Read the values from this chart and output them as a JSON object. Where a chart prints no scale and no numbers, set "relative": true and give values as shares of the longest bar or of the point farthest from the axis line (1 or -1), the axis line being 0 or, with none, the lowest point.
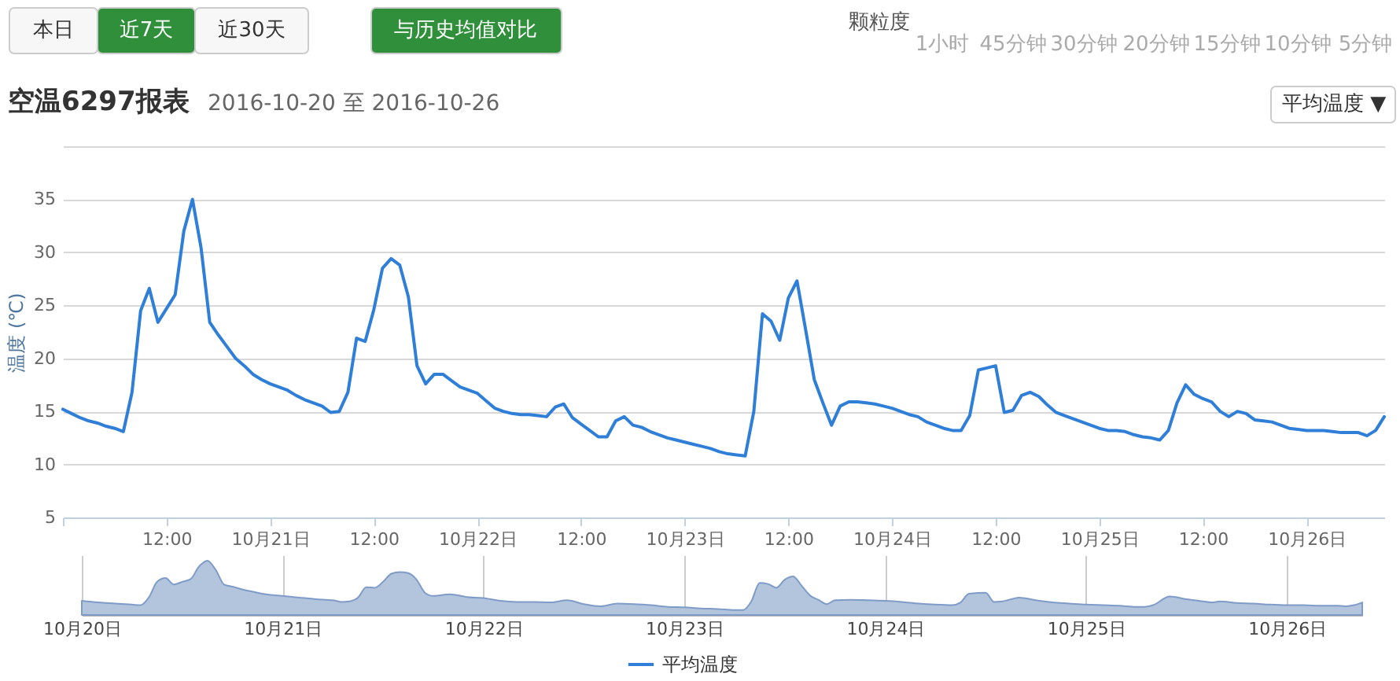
{
  "chart_data": [
    {
      "type": "line",
      "title": "空温6297报表",
      "subtitle": "2016-10-20 至 2016-10-26",
      "ylabel": "温度 (℃)",
      "annotations": [
        "本日",
        "近7天",
        "近30天",
        "与历史均值对比",
        "颗粒度",
        "1小时",
        "45分钟",
        "30分钟",
        "20分钟",
        "15分钟",
        "10分钟",
        "5分钟",
        "平均温度 ▼"
      ],
      "x": [
        "2016-10-20T00:00",
        "2016-10-20T01:00",
        "2016-10-20T02:00",
        "2016-10-20T03:00",
        "2016-10-20T04:00",
        "2016-10-20T05:00",
        "2016-10-20T06:00",
        "2016-10-20T07:00",
        "2016-10-20T08:00",
        "2016-10-20T09:00",
        "2016-10-20T10:00",
        "2016-10-20T11:00",
        "2016-10-20T12:00",
        "2016-10-20T13:00",
        "2016-10-20T14:00",
        "2016-10-20T15:00",
        "2016-10-20T16:00",
        "2016-10-20T17:00",
        "2016-10-20T18:00",
        "2016-10-20T19:00",
        "2016-10-20T20:00",
        "2016-10-20T21:00",
        "2016-10-20T22:00",
        "2016-10-20T23:00",
        "2016-10-21T00:00",
        "2016-10-21T01:00",
        "2016-10-21T02:00",
        "2016-10-21T03:00",
        "2016-10-21T04:00",
        "2016-10-21T05:00",
        "2016-10-21T06:00",
        "2016-10-21T07:00",
        "2016-10-21T08:00",
        "2016-10-21T09:00",
        "2016-10-21T10:00",
        "2016-10-21T11:00",
        "2016-10-21T12:00",
        "2016-10-21T13:00",
        "2016-10-21T14:00",
        "2016-10-21T15:00",
        "2016-10-21T16:00",
        "2016-10-21T17:00",
        "2016-10-21T18:00",
        "2016-10-21T19:00",
        "2016-10-21T20:00",
        "2016-10-21T21:00",
        "2016-10-21T22:00",
        "2016-10-21T23:00",
        "2016-10-22T00:00",
        "2016-10-22T01:00",
        "2016-10-22T02:00",
        "2016-10-22T03:00",
        "2016-10-22T04:00",
        "2016-10-22T05:00",
        "2016-10-22T06:00",
        "2016-10-22T07:00",
        "2016-10-22T08:00",
        "2016-10-22T09:00",
        "2016-10-22T10:00",
        "2016-10-22T11:00",
        "2016-10-22T12:00",
        "2016-10-22T13:00",
        "2016-10-22T14:00",
        "2016-10-22T15:00",
        "2016-10-22T16:00",
        "2016-10-22T17:00",
        "2016-10-22T18:00",
        "2016-10-22T19:00",
        "2016-10-22T20:00",
        "2016-10-22T21:00",
        "2016-10-22T22:00",
        "2016-10-22T23:00",
        "2016-10-23T00:00",
        "2016-10-23T01:00",
        "2016-10-23T02:00",
        "2016-10-23T03:00",
        "2016-10-23T04:00",
        "2016-10-23T05:00",
        "2016-10-23T06:00",
        "2016-10-23T07:00",
        "2016-10-23T08:00",
        "2016-10-23T09:00",
        "2016-10-23T10:00",
        "2016-10-23T11:00",
        "2016-10-23T12:00",
        "2016-10-23T13:00",
        "2016-10-23T14:00",
        "2016-10-23T15:00",
        "2016-10-23T16:00",
        "2016-10-23T17:00",
        "2016-10-23T18:00",
        "2016-10-23T19:00",
        "2016-10-23T20:00",
        "2016-10-23T21:00",
        "2016-10-23T22:00",
        "2016-10-23T23:00",
        "2016-10-24T00:00",
        "2016-10-24T01:00",
        "2016-10-24T02:00",
        "2016-10-24T03:00",
        "2016-10-24T04:00",
        "2016-10-24T05:00",
        "2016-10-24T06:00",
        "2016-10-24T07:00",
        "2016-10-24T08:00",
        "2016-10-24T09:00",
        "2016-10-24T10:00",
        "2016-10-24T11:00",
        "2016-10-24T12:00",
        "2016-10-24T13:00",
        "2016-10-24T14:00",
        "2016-10-24T15:00",
        "2016-10-24T16:00",
        "2016-10-24T17:00",
        "2016-10-24T18:00",
        "2016-10-24T19:00",
        "2016-10-24T20:00",
        "2016-10-24T21:00",
        "2016-10-24T22:00",
        "2016-10-24T23:00",
        "2016-10-25T00:00",
        "2016-10-25T01:00",
        "2016-10-25T02:00",
        "2016-10-25T03:00",
        "2016-10-25T04:00",
        "2016-10-25T05:00",
        "2016-10-25T06:00",
        "2016-10-25T07:00",
        "2016-10-25T08:00",
        "2016-10-25T09:00",
        "2016-10-25T10:00",
        "2016-10-25T11:00",
        "2016-10-25T12:00",
        "2016-10-25T13:00",
        "2016-10-25T14:00",
        "2016-10-25T15:00",
        "2016-10-25T16:00",
        "2016-10-25T17:00",
        "2016-10-25T18:00",
        "2016-10-25T19:00",
        "2016-10-25T20:00",
        "2016-10-25T21:00",
        "2016-10-25T22:00",
        "2016-10-25T23:00",
        "2016-10-26T00:00",
        "2016-10-26T01:00",
        "2016-10-26T02:00",
        "2016-10-26T03:00",
        "2016-10-26T04:00",
        "2016-10-26T05:00",
        "2016-10-26T06:00",
        "2016-10-26T07:00",
        "2016-10-26T08:00",
        "2016-10-26T09:00"
      ],
      "series": [
        {
          "name": "平均温度",
          "color": "#2f7ed8",
          "values": [
            15.2,
            14.8,
            14.4,
            14.1,
            13.9,
            13.6,
            13.4,
            13.1,
            16.8,
            24.5,
            26.6,
            23.4,
            24.7,
            26.0,
            32.0,
            35.0,
            30.4,
            23.4,
            22.2,
            21.1,
            20.0,
            19.3,
            18.5,
            18.0,
            17.6,
            17.3,
            17.0,
            16.5,
            16.1,
            15.8,
            15.5,
            14.9,
            15.0,
            16.8,
            21.9,
            21.6,
            24.6,
            28.5,
            29.4,
            28.8,
            25.8,
            19.3,
            17.6,
            18.5,
            18.5,
            17.9,
            17.3,
            17.0,
            16.7,
            16.0,
            15.3,
            15.0,
            14.8,
            14.7,
            14.7,
            14.6,
            14.5,
            15.4,
            15.7,
            14.4,
            13.8,
            13.2,
            12.6,
            12.6,
            14.1,
            14.5,
            13.7,
            13.5,
            13.1,
            12.8,
            12.5,
            12.3,
            12.1,
            11.9,
            11.7,
            11.5,
            11.2,
            11.0,
            10.9,
            10.8,
            15.0,
            24.2,
            23.5,
            21.7,
            25.7,
            27.3,
            22.7,
            18.0,
            15.8,
            13.7,
            15.5,
            15.9,
            15.9,
            15.8,
            15.7,
            15.5,
            15.3,
            15.0,
            14.7,
            14.5,
            14.0,
            13.7,
            13.4,
            13.2,
            13.2,
            14.6,
            18.9,
            19.1,
            19.3,
            14.9,
            15.1,
            16.5,
            16.8,
            16.4,
            15.6,
            14.9,
            14.6,
            14.3,
            14.0,
            13.7,
            13.4,
            13.2,
            13.2,
            13.1,
            12.8,
            12.6,
            12.5,
            12.3,
            13.2,
            15.8,
            17.5,
            16.6,
            16.2,
            15.9,
            15.0,
            14.5,
            15.0,
            14.8,
            14.2,
            14.1,
            14.0,
            13.7,
            13.4,
            13.3,
            13.2,
            13.2,
            13.2,
            13.1,
            13.0,
            13.0,
            13.0,
            12.7,
            13.2,
            14.5
          ]
        }
      ],
      "xlim": [
        "2016-10-20T00:00",
        "2016-10-26T09:00"
      ],
      "xticks": [
        {
          "value": "2016-10-20T00:00",
          "label": null
        },
        {
          "value": "2016-10-20T12:00",
          "label": "12:00"
        },
        {
          "value": "2016-10-21T00:00",
          "label": "10月21日"
        },
        {
          "value": "2016-10-21T12:00",
          "label": "12:00"
        },
        {
          "value": "2016-10-22T00:00",
          "label": "10月22日"
        },
        {
          "value": "2016-10-22T12:00",
          "label": "12:00"
        },
        {
          "value": "2016-10-23T00:00",
          "label": "10月23日"
        },
        {
          "value": "2016-10-23T12:00",
          "label": "12:00"
        },
        {
          "value": "2016-10-24T00:00",
          "label": "10月24日"
        },
        {
          "value": "2016-10-24T12:00",
          "label": "12:00"
        },
        {
          "value": "2016-10-25T00:00",
          "label": "10月25日"
        },
        {
          "value": "2016-10-25T12:00",
          "label": "12:00"
        },
        {
          "value": "2016-10-26T00:00",
          "label": "10月26日"
        }
      ],
      "ylim": [
        5,
        40
      ],
      "yticks": [
        5,
        10,
        15,
        20,
        25,
        30,
        35,
        {
          "value": 40,
          "label": null
        }
      ],
      "grid": "y",
      "legend": "bottom"
    },
    {
      "type": "area",
      "relative": true,
      "x": [
        "2016-10-20T00:00",
        "2016-10-20T02:00",
        "2016-10-20T04:00",
        "2016-10-20T06:00",
        "2016-10-20T07:00",
        "2016-10-20T08:00",
        "2016-10-20T09:00",
        "2016-10-20T10:00",
        "2016-10-20T11:00",
        "2016-10-20T12:00",
        "2016-10-20T13:00",
        "2016-10-20T14:00",
        "2016-10-20T15:00",
        "2016-10-20T16:00",
        "2016-10-20T17:00",
        "2016-10-20T18:00",
        "2016-10-20T20:00",
        "2016-10-20T22:00",
        "2016-10-21T00:00",
        "2016-10-21T02:00",
        "2016-10-21T04:00",
        "2016-10-21T06:00",
        "2016-10-21T07:00",
        "2016-10-21T08:00",
        "2016-10-21T09:00",
        "2016-10-21T10:00",
        "2016-10-21T11:00",
        "2016-10-21T12:00",
        "2016-10-21T13:00",
        "2016-10-21T14:00",
        "2016-10-21T15:00",
        "2016-10-21T16:00",
        "2016-10-21T17:00",
        "2016-10-21T18:00",
        "2016-10-21T20:00",
        "2016-10-21T22:00",
        "2016-10-22T00:00",
        "2016-10-22T02:00",
        "2016-10-22T04:00",
        "2016-10-22T06:00",
        "2016-10-22T08:00",
        "2016-10-22T10:00",
        "2016-10-22T12:00",
        "2016-10-22T14:00",
        "2016-10-22T16:00",
        "2016-10-22T18:00",
        "2016-10-22T20:00",
        "2016-10-22T22:00",
        "2016-10-23T00:00",
        "2016-10-23T02:00",
        "2016-10-23T04:00",
        "2016-10-23T06:00",
        "2016-10-23T07:00",
        "2016-10-23T08:00",
        "2016-10-23T09:00",
        "2016-10-23T10:00",
        "2016-10-23T11:00",
        "2016-10-23T12:00",
        "2016-10-23T13:00",
        "2016-10-23T14:00",
        "2016-10-23T15:00",
        "2016-10-23T16:00",
        "2016-10-23T17:00",
        "2016-10-23T18:00",
        "2016-10-23T20:00",
        "2016-10-23T22:00",
        "2016-10-24T00:00",
        "2016-10-24T02:00",
        "2016-10-24T04:00",
        "2016-10-24T06:00",
        "2016-10-24T08:00",
        "2016-10-24T09:00",
        "2016-10-24T10:00",
        "2016-10-24T12:00",
        "2016-10-24T13:00",
        "2016-10-24T14:00",
        "2016-10-24T16:00",
        "2016-10-24T18:00",
        "2016-10-24T20:00",
        "2016-10-24T22:00",
        "2016-10-25T00:00",
        "2016-10-25T02:00",
        "2016-10-25T04:00",
        "2016-10-25T06:00",
        "2016-10-25T07:00",
        "2016-10-25T08:00",
        "2016-10-25T10:00",
        "2016-10-25T12:00",
        "2016-10-25T14:00",
        "2016-10-25T15:00",
        "2016-10-25T16:00",
        "2016-10-25T18:00",
        "2016-10-25T20:00",
        "2016-10-25T22:00",
        "2016-10-26T00:00",
        "2016-10-26T02:00",
        "2016-10-26T04:00",
        "2016-10-26T06:00",
        "2016-10-26T07:00",
        "2016-10-26T08:00",
        "2016-10-26T09:00"
      ],
      "series": [
        {
          "color": "#b3c4dd",
          "values": [
            0.26,
            0.23,
            0.21,
            0.19,
            0.18,
            0.32,
            0.61,
            0.68,
            0.56,
            0.61,
            0.66,
            0.89,
            1.0,
            0.83,
            0.56,
            0.52,
            0.44,
            0.38,
            0.35,
            0.32,
            0.29,
            0.27,
            0.24,
            0.25,
            0.32,
            0.51,
            0.5,
            0.61,
            0.76,
            0.79,
            0.77,
            0.65,
            0.41,
            0.35,
            0.38,
            0.33,
            0.31,
            0.26,
            0.24,
            0.24,
            0.23,
            0.27,
            0.2,
            0.16,
            0.21,
            0.2,
            0.18,
            0.15,
            0.14,
            0.12,
            0.11,
            0.09,
            0.09,
            0.25,
            0.59,
            0.57,
            0.5,
            0.65,
            0.71,
            0.54,
            0.36,
            0.28,
            0.2,
            0.27,
            0.28,
            0.27,
            0.26,
            0.24,
            0.21,
            0.19,
            0.18,
            0.23,
            0.39,
            0.41,
            0.24,
            0.25,
            0.32,
            0.27,
            0.23,
            0.21,
            0.19,
            0.18,
            0.17,
            0.15,
            0.15,
            0.18,
            0.34,
            0.29,
            0.25,
            0.23,
            0.25,
            0.22,
            0.21,
            0.19,
            0.18,
            0.18,
            0.17,
            0.17,
            0.16,
            0.18,
            0.23
          ]
        }
      ],
      "xlim": [
        "2016-10-20T00:00",
        "2016-10-26T09:00"
      ],
      "xticks": [
        {
          "value": "2016-10-20T00:00",
          "label": "10月20日"
        },
        {
          "value": "2016-10-21T00:00",
          "label": "10月21日"
        },
        {
          "value": "2016-10-22T00:00",
          "label": "10月22日"
        },
        {
          "value": "2016-10-23T00:00",
          "label": "10月23日"
        },
        {
          "value": "2016-10-24T00:00",
          "label": "10月24日"
        },
        {
          "value": "2016-10-25T00:00",
          "label": "10月25日"
        },
        {
          "value": "2016-10-26T00:00",
          "label": "10月26日"
        }
      ],
      "grid": "x"
    }
  ]
}
